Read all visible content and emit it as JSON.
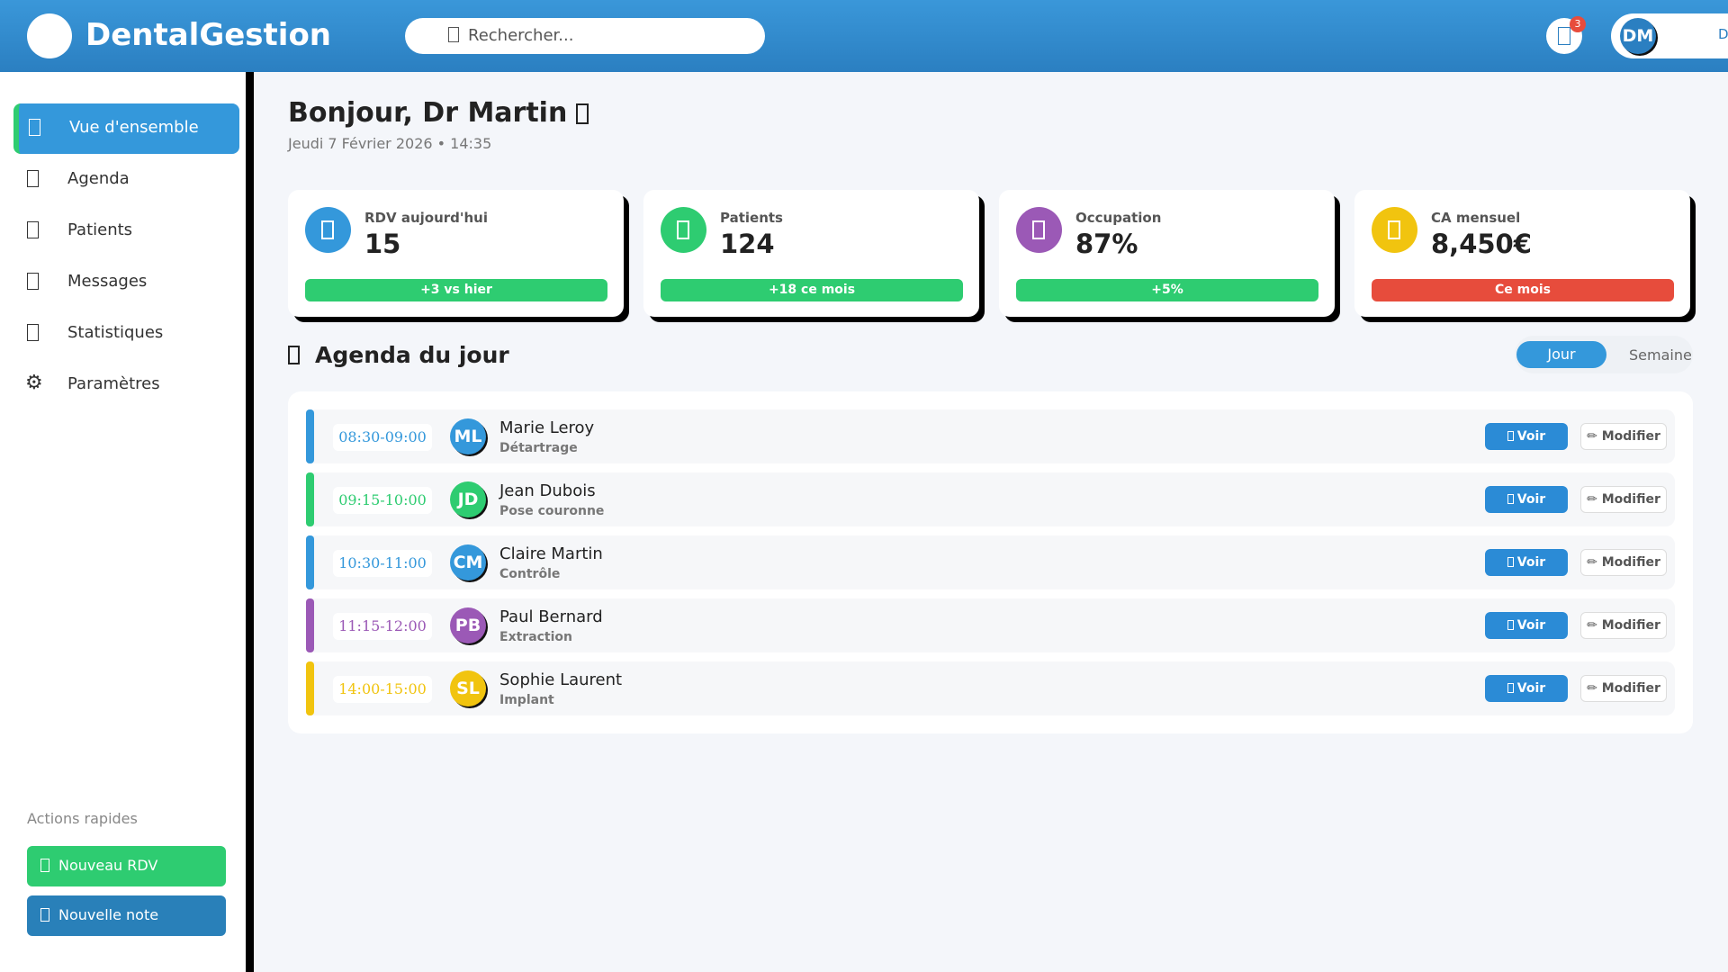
{
  "header": {
    "brand": "DentalGestion",
    "search_placeholder": "Rechercher...",
    "notification_count": "3",
    "user_initials": "DM",
    "user_name": "Dr Martin"
  },
  "sidebar": {
    "items": [
      {
        "label": "Vue d'ensemble",
        "icon": "overview-icon",
        "active": true
      },
      {
        "label": "Agenda",
        "icon": "calendar-icon"
      },
      {
        "label": "Patients",
        "icon": "patients-icon"
      },
      {
        "label": "Messages",
        "icon": "messages-icon"
      },
      {
        "label": "Statistiques",
        "icon": "stats-icon"
      },
      {
        "label": "Paramètres",
        "icon": "gear-icon",
        "glyph": "⚙"
      }
    ],
    "quick_actions_title": "Actions rapides",
    "quick_actions": [
      {
        "label": "Nouveau RDV",
        "color": "#2ecc71"
      },
      {
        "label": "Nouvelle note",
        "color": "#2980b9"
      }
    ]
  },
  "page": {
    "title": "Bonjour, Dr Martin",
    "date": "Jeudi 7 Février 2026 • 14:35"
  },
  "stats": [
    {
      "label": "RDV aujourd'hui",
      "value": "15",
      "badge": "+3 vs hier",
      "icon_color": "#3498db",
      "badge_color": "#2ecc71"
    },
    {
      "label": "Patients",
      "value": "124",
      "badge": "+18 ce mois",
      "icon_color": "#2ecc71",
      "badge_color": "#2ecc71"
    },
    {
      "label": "Occupation",
      "value": "87%",
      "badge": "+5%",
      "icon_color": "#9b59b6",
      "badge_color": "#2ecc71"
    },
    {
      "label": "CA mensuel",
      "value": "8,450€",
      "badge": "Ce mois",
      "icon_color": "#f1c40f",
      "badge_color": "#e74c3c"
    }
  ],
  "agenda": {
    "title": "Agenda du jour",
    "view_day": "Jour",
    "view_week": "Semaine",
    "view_label": "Voir",
    "edit_label": "✏ Modifier",
    "appointments": [
      {
        "time": "08:30-09:00",
        "initials": "ML",
        "name": "Marie Leroy",
        "treatment": "Détartrage",
        "color": "#3498db"
      },
      {
        "time": "09:15-10:00",
        "initials": "JD",
        "name": "Jean Dubois",
        "treatment": "Pose couronne",
        "color": "#2ecc71"
      },
      {
        "time": "10:30-11:00",
        "initials": "CM",
        "name": "Claire Martin",
        "treatment": "Contrôle",
        "color": "#3498db"
      },
      {
        "time": "11:15-12:00",
        "initials": "PB",
        "name": "Paul Bernard",
        "treatment": "Extraction",
        "color": "#9b59b6"
      },
      {
        "time": "14:00-15:00",
        "initials": "SL",
        "name": "Sophie Laurent",
        "treatment": "Implant",
        "color": "#f1c40f"
      }
    ]
  }
}
